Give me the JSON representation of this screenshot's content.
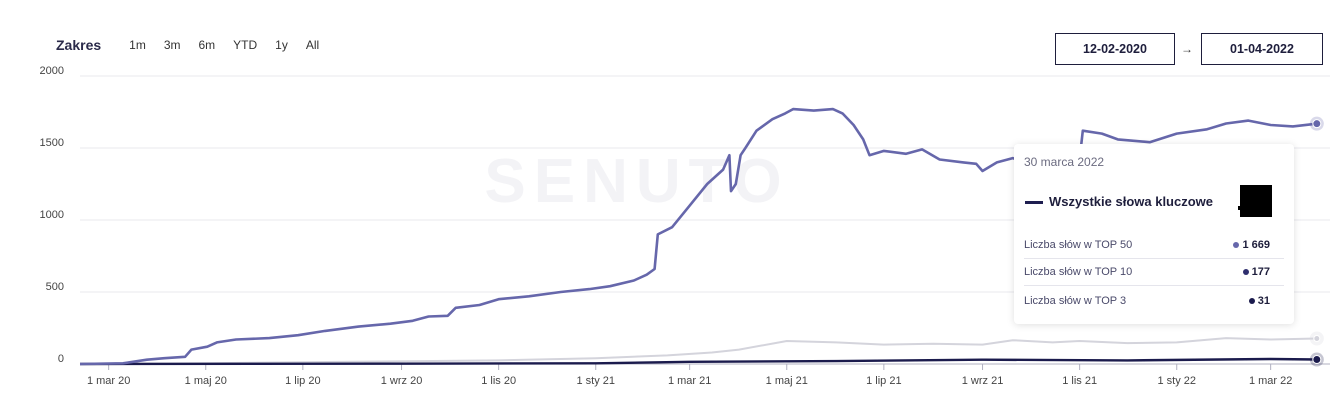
{
  "range": {
    "title": "Zakres",
    "options": [
      "1m",
      "3m",
      "6m",
      "YTD",
      "1y",
      "All"
    ]
  },
  "dates": {
    "from": "12-02-2020",
    "arrow": "→",
    "to": "01-04-2022"
  },
  "watermark": "SENUTO",
  "colors": {
    "top50": "#6667ab",
    "top10": "#d4d4dc",
    "top3": "#1b1b4d",
    "grid": "#e8e8ee"
  },
  "tooltip": {
    "date": "30 marca 2022",
    "series_name": "Wszystkie słowa kluczowe",
    "rows": [
      {
        "label": "Liczba słów w TOP 50",
        "value": "1 669",
        "color": "#6667ab"
      },
      {
        "label": "Liczba słów w TOP 10",
        "value": "177",
        "color": "#2e2e6e"
      },
      {
        "label": "Liczba słów w TOP 3",
        "value": "31",
        "color": "#1b1b4d"
      }
    ]
  },
  "chart_data": {
    "type": "line",
    "ylim": [
      0,
      2000
    ],
    "yticks": [
      0,
      500,
      1000,
      1500,
      2000
    ],
    "xlim": [
      "2020-02-12",
      "2022-04-01"
    ],
    "xticks": [
      {
        "date": "2020-03-01",
        "label": "1 mar 20"
      },
      {
        "date": "2020-05-01",
        "label": "1 maj 20"
      },
      {
        "date": "2020-07-01",
        "label": "1 lip 20"
      },
      {
        "date": "2020-09-01",
        "label": "1 wrz 20"
      },
      {
        "date": "2020-11-01",
        "label": "1 lis 20"
      },
      {
        "date": "2021-01-01",
        "label": "1 sty 21"
      },
      {
        "date": "2021-03-01",
        "label": "1 mar 21"
      },
      {
        "date": "2021-05-01",
        "label": "1 maj 21"
      },
      {
        "date": "2021-07-01",
        "label": "1 lip 21"
      },
      {
        "date": "2021-09-01",
        "label": "1 wrz 21"
      },
      {
        "date": "2021-11-01",
        "label": "1 lis 21"
      },
      {
        "date": "2022-01-01",
        "label": "1 sty 22"
      },
      {
        "date": "2022-03-01",
        "label": "1 mar 22"
      }
    ],
    "series": [
      {
        "name": "Liczba słów w TOP 50",
        "points": [
          [
            "2020-02-12",
            0
          ],
          [
            "2020-03-10",
            5
          ],
          [
            "2020-03-25",
            30
          ],
          [
            "2020-04-05",
            40
          ],
          [
            "2020-04-18",
            50
          ],
          [
            "2020-04-22",
            100
          ],
          [
            "2020-05-02",
            120
          ],
          [
            "2020-05-08",
            150
          ],
          [
            "2020-05-20",
            170
          ],
          [
            "2020-06-10",
            180
          ],
          [
            "2020-06-28",
            200
          ],
          [
            "2020-07-15",
            230
          ],
          [
            "2020-08-05",
            260
          ],
          [
            "2020-08-25",
            280
          ],
          [
            "2020-09-08",
            300
          ],
          [
            "2020-09-18",
            330
          ],
          [
            "2020-09-30",
            335
          ],
          [
            "2020-10-05",
            390
          ],
          [
            "2020-10-20",
            410
          ],
          [
            "2020-11-01",
            450
          ],
          [
            "2020-11-20",
            470
          ],
          [
            "2020-12-10",
            500
          ],
          [
            "2020-12-28",
            520
          ],
          [
            "2021-01-10",
            540
          ],
          [
            "2021-01-25",
            580
          ],
          [
            "2021-02-02",
            620
          ],
          [
            "2021-02-07",
            660
          ],
          [
            "2021-02-09",
            900
          ],
          [
            "2021-02-18",
            950
          ],
          [
            "2021-03-01",
            1100
          ],
          [
            "2021-03-12",
            1250
          ],
          [
            "2021-03-22",
            1350
          ],
          [
            "2021-03-26",
            1450
          ],
          [
            "2021-03-27",
            1200
          ],
          [
            "2021-03-30",
            1250
          ],
          [
            "2021-04-02",
            1450
          ],
          [
            "2021-04-05",
            1500
          ],
          [
            "2021-04-12",
            1620
          ],
          [
            "2021-04-22",
            1700
          ],
          [
            "2021-04-30",
            1740
          ],
          [
            "2021-05-05",
            1770
          ],
          [
            "2021-05-18",
            1760
          ],
          [
            "2021-05-30",
            1770
          ],
          [
            "2021-06-05",
            1740
          ],
          [
            "2021-06-12",
            1660
          ],
          [
            "2021-06-18",
            1560
          ],
          [
            "2021-06-22",
            1450
          ],
          [
            "2021-07-01",
            1480
          ],
          [
            "2021-07-15",
            1460
          ],
          [
            "2021-07-25",
            1490
          ],
          [
            "2021-08-05",
            1420
          ],
          [
            "2021-08-20",
            1400
          ],
          [
            "2021-08-28",
            1390
          ],
          [
            "2021-09-01",
            1340
          ],
          [
            "2021-09-10",
            1400
          ],
          [
            "2021-09-20",
            1430
          ],
          [
            "2021-09-30",
            1390
          ],
          [
            "2021-10-10",
            1350
          ],
          [
            "2021-10-25",
            1340
          ],
          [
            "2021-11-01",
            1420
          ],
          [
            "2021-11-03",
            1620
          ],
          [
            "2021-11-15",
            1600
          ],
          [
            "2021-11-25",
            1560
          ],
          [
            "2021-12-15",
            1540
          ],
          [
            "2022-01-01",
            1600
          ],
          [
            "2022-01-20",
            1630
          ],
          [
            "2022-02-01",
            1670
          ],
          [
            "2022-02-15",
            1690
          ],
          [
            "2022-03-01",
            1660
          ],
          [
            "2022-03-15",
            1650
          ],
          [
            "2022-03-30",
            1669
          ]
        ]
      },
      {
        "name": "Liczba słów w TOP 10",
        "points": [
          [
            "2020-02-12",
            0
          ],
          [
            "2020-05-01",
            5
          ],
          [
            "2020-08-01",
            15
          ],
          [
            "2020-11-01",
            25
          ],
          [
            "2021-01-01",
            40
          ],
          [
            "2021-02-15",
            60
          ],
          [
            "2021-03-15",
            80
          ],
          [
            "2021-04-01",
            100
          ],
          [
            "2021-05-01",
            160
          ],
          [
            "2021-06-01",
            150
          ],
          [
            "2021-07-01",
            135
          ],
          [
            "2021-08-01",
            140
          ],
          [
            "2021-09-01",
            135
          ],
          [
            "2021-09-20",
            165
          ],
          [
            "2021-10-15",
            150
          ],
          [
            "2021-11-01",
            160
          ],
          [
            "2021-12-01",
            145
          ],
          [
            "2022-01-01",
            150
          ],
          [
            "2022-02-01",
            180
          ],
          [
            "2022-03-01",
            170
          ],
          [
            "2022-03-30",
            177
          ]
        ]
      },
      {
        "name": "Liczba słów w TOP 3",
        "points": [
          [
            "2020-02-12",
            0
          ],
          [
            "2020-09-01",
            2
          ],
          [
            "2021-01-01",
            5
          ],
          [
            "2021-03-01",
            15
          ],
          [
            "2021-06-01",
            20
          ],
          [
            "2021-09-01",
            30
          ],
          [
            "2021-12-01",
            25
          ],
          [
            "2022-03-01",
            35
          ],
          [
            "2022-03-30",
            31
          ]
        ]
      }
    ]
  }
}
